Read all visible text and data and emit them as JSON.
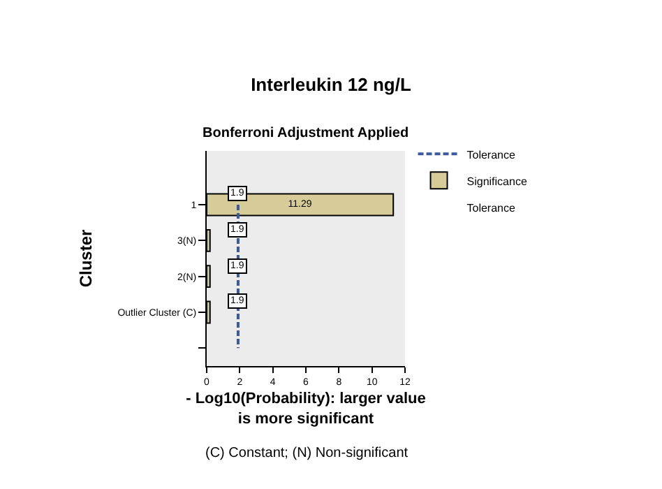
{
  "chart_data": {
    "type": "bar",
    "orientation": "horizontal",
    "title": "Interleukin 12 ng/L",
    "subtitle": "Bonferroni Adjustment Applied",
    "xlabel": "- Log10(Probability): larger value\nis more significant",
    "ylabel": "Cluster",
    "categories": [
      "1",
      "3(N)",
      "2(N)",
      "Outlier Cluster (C)",
      null
    ],
    "series": [
      {
        "name": "Significance",
        "color": "#d6cc99",
        "values": [
          11.29,
          0.2,
          0.2,
          0.2,
          null
        ],
        "value_labels": [
          "11.29",
          null,
          null,
          null,
          null
        ]
      },
      {
        "name": "Tolerance",
        "type": "line",
        "color": "#3a5a9a",
        "line_style": "dashed",
        "values": [
          1.9,
          1.9,
          1.9,
          1.9,
          1.9
        ],
        "value_labels": [
          "1.9",
          "1.9",
          "1.9",
          "1.9",
          null
        ]
      }
    ],
    "xlim": [
      0,
      12
    ],
    "xticks": [
      0,
      2,
      4,
      6,
      8,
      10,
      12
    ],
    "annotations": [
      "Tolerance",
      "(C) Constant; (N) Non-significant"
    ],
    "legend": "top right",
    "grid": false
  }
}
